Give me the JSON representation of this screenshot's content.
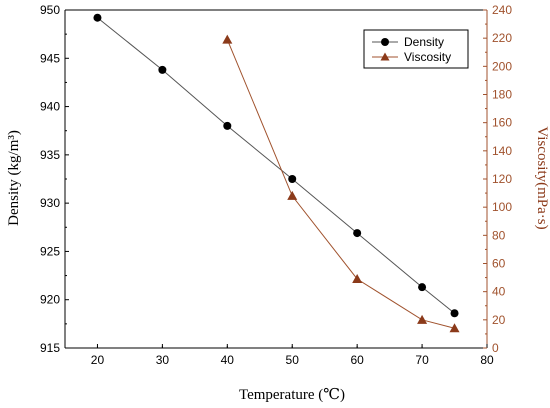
{
  "chart_data": {
    "type": "line",
    "x": [
      20,
      30,
      40,
      50,
      60,
      70,
      75
    ],
    "xlabel": "Temperature (℃)",
    "xlim": [
      15,
      80
    ],
    "xticks": [
      20,
      30,
      40,
      50,
      60,
      70,
      80
    ],
    "ylabel_left": "Density (kg/m³)",
    "ylim_left": [
      915,
      950
    ],
    "yticks_left": [
      915,
      920,
      925,
      930,
      935,
      940,
      945,
      950
    ],
    "ylabel_right": "Viscosity(mPa·s)",
    "ylim_right": [
      0,
      240
    ],
    "yticks_right": [
      0,
      20,
      40,
      60,
      80,
      100,
      120,
      140,
      160,
      180,
      200,
      220,
      240
    ],
    "series": [
      {
        "name": "Density",
        "axis": "left",
        "marker": "circle",
        "color": "#000000",
        "line_color": "#555555",
        "x": [
          20,
          30,
          40,
          50,
          60,
          70,
          75
        ],
        "values": [
          949.2,
          943.8,
          938.0,
          932.5,
          926.9,
          921.3,
          918.6
        ]
      },
      {
        "name": "Viscosity",
        "axis": "right",
        "marker": "triangle",
        "color": "#8b3a1a",
        "line_color": "#a0522d",
        "x": [
          40,
          50,
          60,
          70,
          75
        ],
        "values": [
          219,
          108,
          49,
          20,
          14
        ]
      }
    ],
    "legend_position": "top-right",
    "right_axis_color": "#a0522d"
  }
}
